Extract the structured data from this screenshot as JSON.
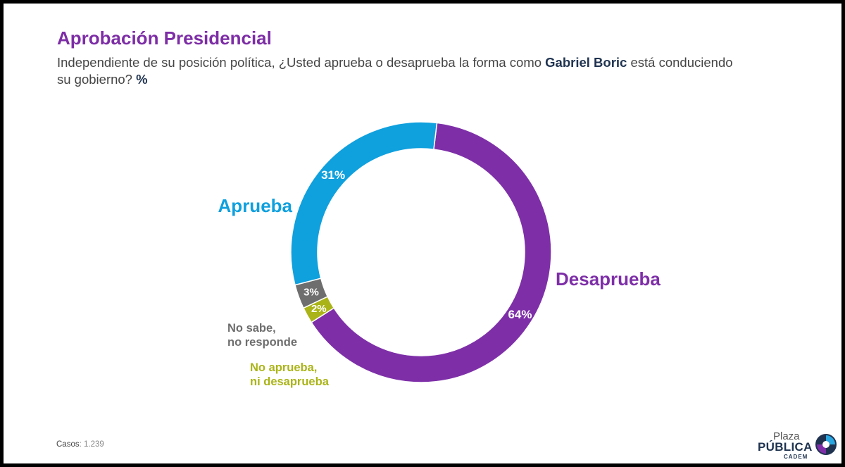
{
  "title": "Aprobación Presidencial",
  "subtitle": {
    "part1": "Independiente de su posición política, ¿Usted aprueba o desaprueba la forma como ",
    "name": "Gabriel Boric",
    "part2": " está conduciendo su gobierno? ",
    "unit": "%"
  },
  "cases": {
    "label": "Casos",
    "value": ": 1.239"
  },
  "logo": {
    "line1": "Plaza",
    "line2": "PÚBLICA",
    "line3": "CADEM"
  },
  "chart_data": {
    "type": "pie",
    "donut": true,
    "unit": "%",
    "slices": [
      {
        "name": "Desaprueba",
        "value": 64,
        "value_label": "64%",
        "color": "#7e2fa8",
        "label_lines": [
          "Desaprueba"
        ]
      },
      {
        "name": "No aprueba, ni desaprueba",
        "value": 2,
        "value_label": "2%",
        "color": "#aab418",
        "label_lines": [
          "No aprueba,",
          "ni desaprueba"
        ]
      },
      {
        "name": "No sabe, no responde",
        "value": 3,
        "value_label": "3%",
        "color": "#6e6e6e",
        "label_lines": [
          "No sabe,",
          "no responde"
        ]
      },
      {
        "name": "Aprueba",
        "value": 31,
        "value_label": "31%",
        "color": "#0fa0de",
        "label_lines": [
          "Aprueba"
        ]
      }
    ]
  }
}
